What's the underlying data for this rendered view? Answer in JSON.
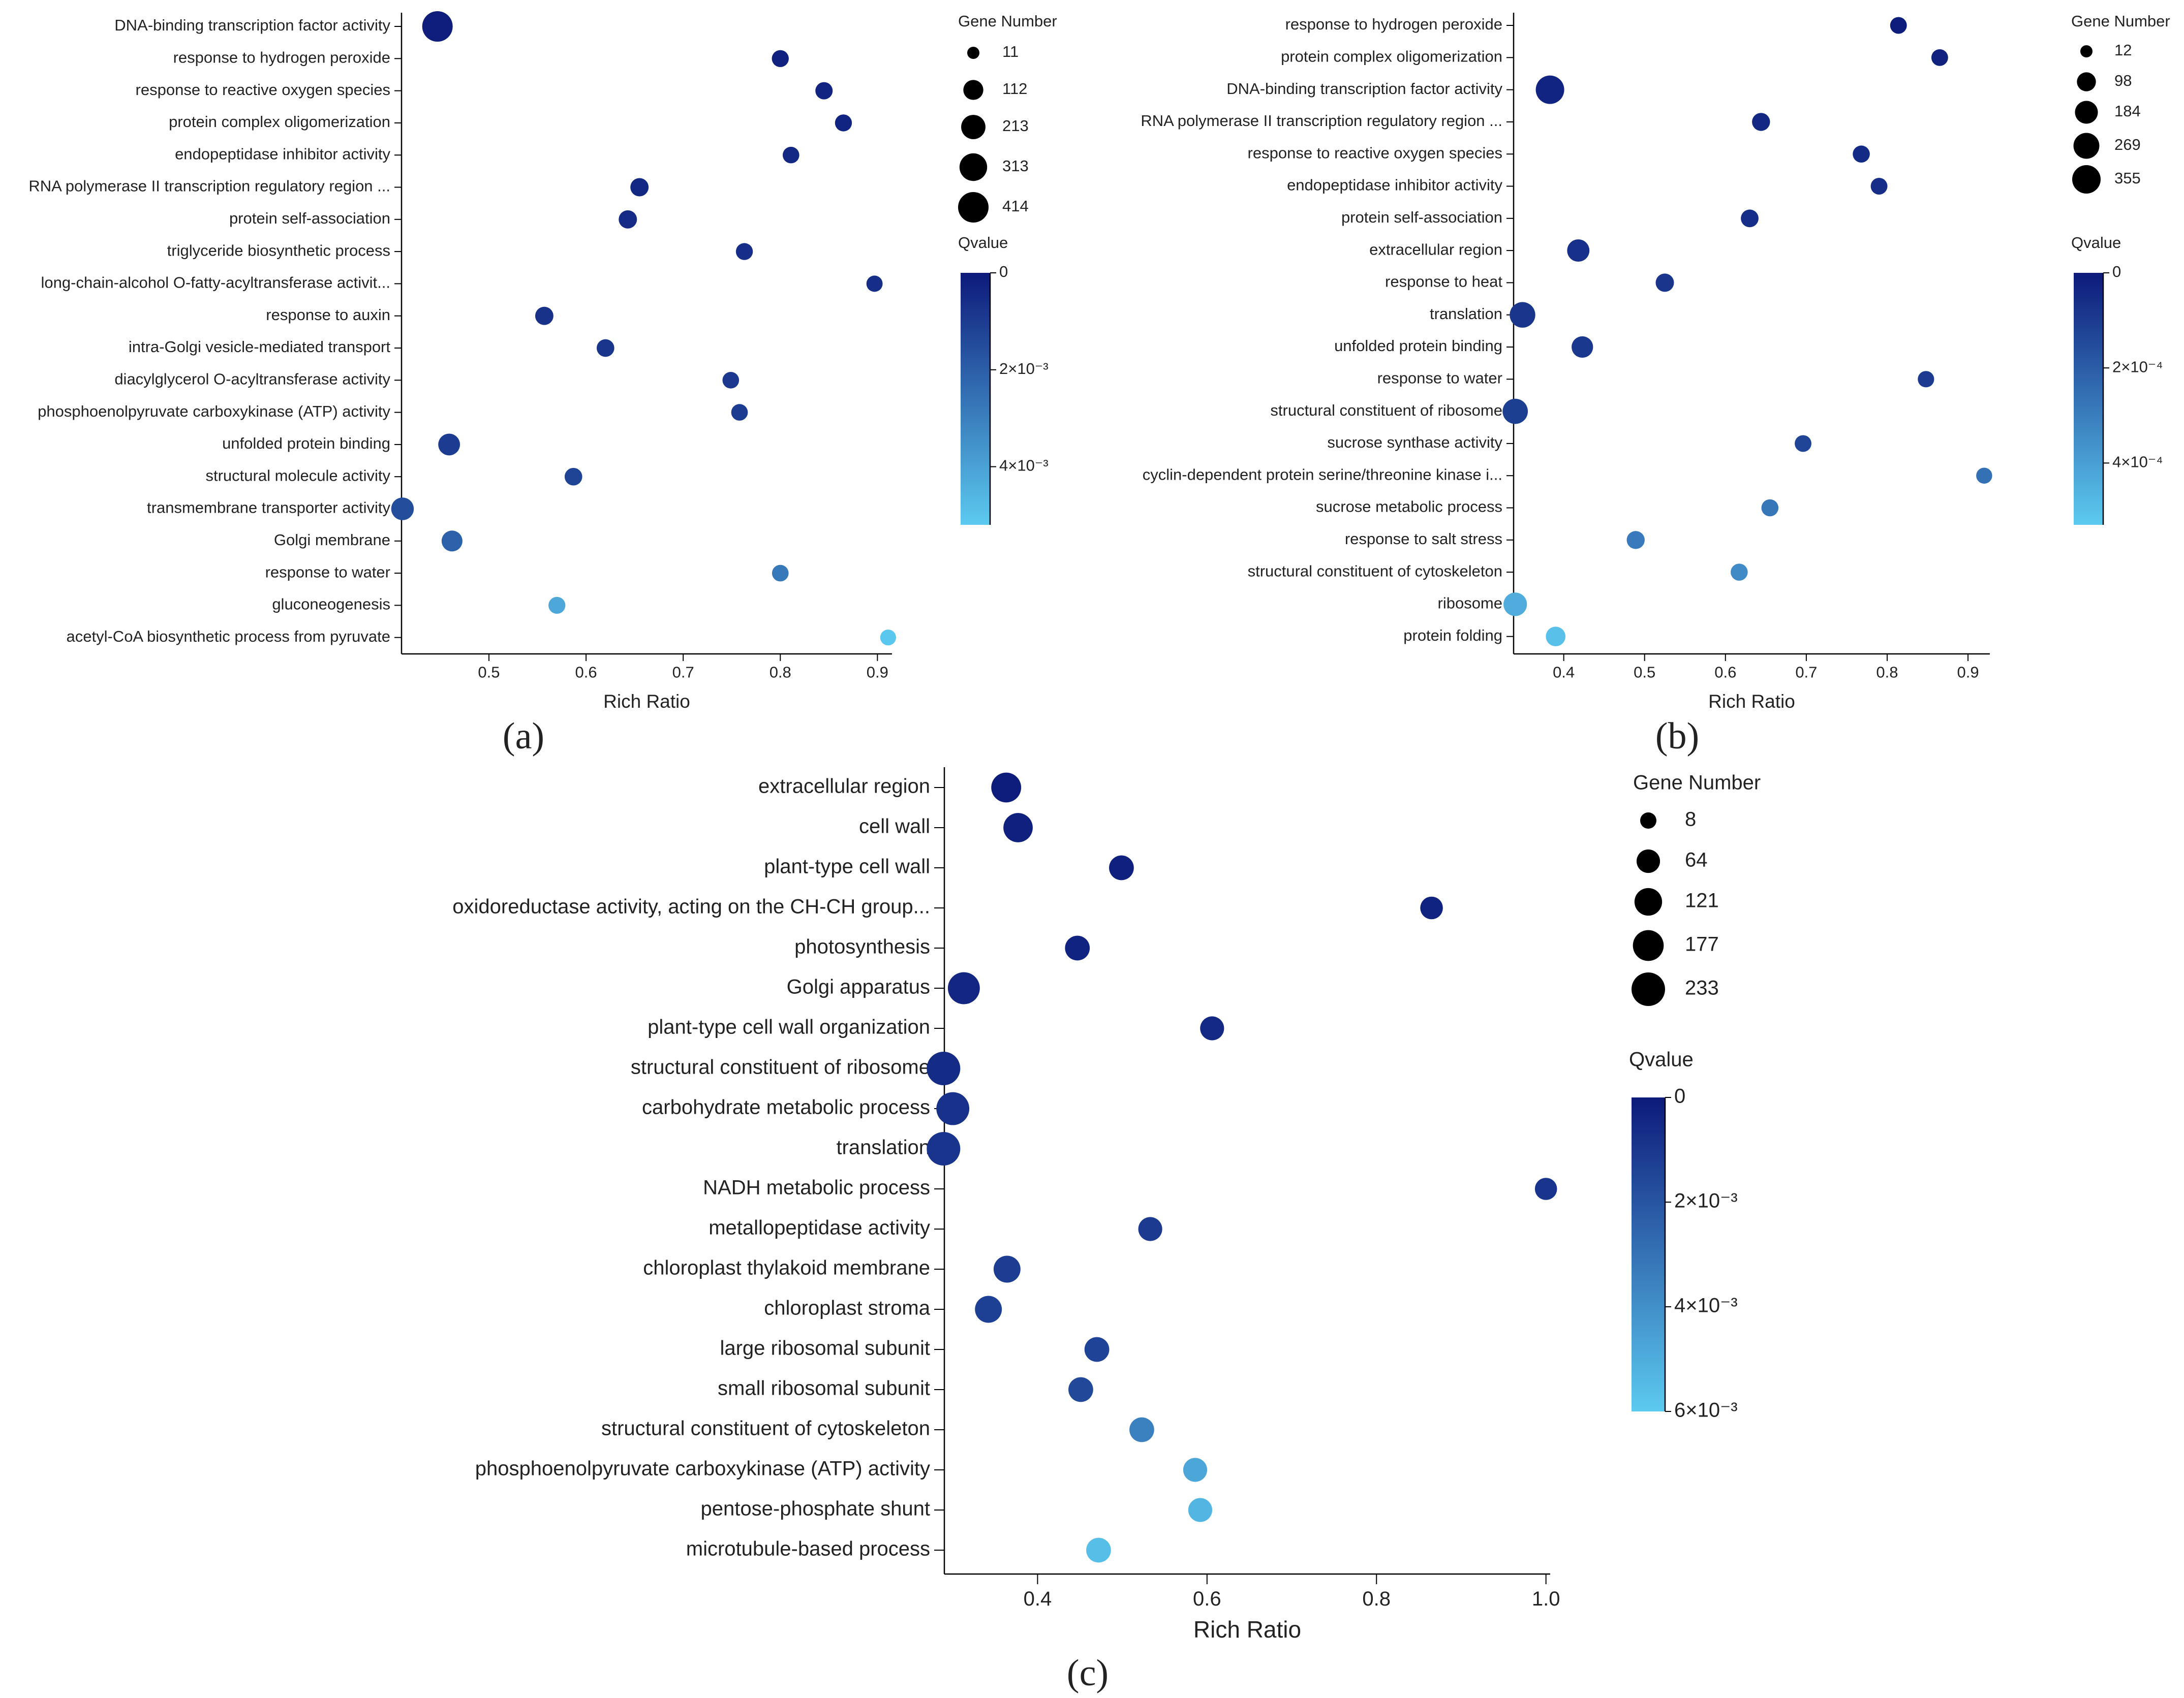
{
  "figure": {
    "panel_labels": [
      "(a)",
      "(b)",
      "(c)"
    ]
  },
  "chart_data": [
    {
      "panel": "(a)",
      "type": "scatter",
      "subtype": "bubble",
      "xlabel": "Rich Ratio",
      "xlim": [
        0.41,
        0.915
      ],
      "xticks": [
        0.5,
        0.6,
        0.7,
        0.8,
        0.9
      ],
      "xtick_labels": [
        "0.5",
        "0.6",
        "0.7",
        "0.8",
        "0.9"
      ],
      "size_legend": {
        "title": "Gene Number",
        "values": [
          11,
          112,
          213,
          313,
          414
        ]
      },
      "color_legend": {
        "title": "Qvalue",
        "min": 0,
        "max": 0.0052,
        "ticks": [
          0,
          0.002,
          0.004
        ],
        "tick_labels": [
          "0",
          "2×10⁻³",
          "4×10⁻³"
        ],
        "low_color": "#0d1a7a",
        "high_color": "#5ccaf0"
      },
      "points": [
        {
          "term": "DNA-binding transcription factor activity",
          "rich_ratio": 0.447,
          "gene_number": 414,
          "qvalue": 0.0001
        },
        {
          "term": "response to hydrogen peroxide",
          "rich_ratio": 0.8,
          "gene_number": 60,
          "qvalue": 0.0002
        },
        {
          "term": "response to reactive oxygen species",
          "rich_ratio": 0.845,
          "gene_number": 65,
          "qvalue": 0.0003
        },
        {
          "term": "protein complex oligomerization",
          "rich_ratio": 0.865,
          "gene_number": 60,
          "qvalue": 0.0003
        },
        {
          "term": "endopeptidase inhibitor activity",
          "rich_ratio": 0.811,
          "gene_number": 55,
          "qvalue": 0.0004
        },
        {
          "term": "RNA polymerase II transcription regulatory region ...",
          "rich_ratio": 0.655,
          "gene_number": 80,
          "qvalue": 0.0004
        },
        {
          "term": "protein self-association",
          "rich_ratio": 0.643,
          "gene_number": 80,
          "qvalue": 0.0005
        },
        {
          "term": "triglyceride biosynthetic process",
          "rich_ratio": 0.763,
          "gene_number": 60,
          "qvalue": 0.0006
        },
        {
          "term": "long-chain-alcohol O-fatty-acyltransferase activit...",
          "rich_ratio": 0.897,
          "gene_number": 50,
          "qvalue": 0.0006
        },
        {
          "term": "response to auxin",
          "rich_ratio": 0.557,
          "gene_number": 80,
          "qvalue": 0.0007
        },
        {
          "term": "intra-Golgi vesicle-mediated transport",
          "rich_ratio": 0.62,
          "gene_number": 70,
          "qvalue": 0.0008
        },
        {
          "term": "diacylglycerol O-acyltransferase activity",
          "rich_ratio": 0.749,
          "gene_number": 55,
          "qvalue": 0.0009
        },
        {
          "term": "phosphoenolpyruvate carboxykinase (ATP) activity",
          "rich_ratio": 0.758,
          "gene_number": 55,
          "qvalue": 0.001
        },
        {
          "term": "unfolded protein binding",
          "rich_ratio": 0.459,
          "gene_number": 150,
          "qvalue": 0.001
        },
        {
          "term": "structural molecule activity",
          "rich_ratio": 0.587,
          "gene_number": 70,
          "qvalue": 0.0012
        },
        {
          "term": "transmembrane transporter activity",
          "rich_ratio": 0.411,
          "gene_number": 170,
          "qvalue": 0.0015
        },
        {
          "term": "Golgi membrane",
          "rich_ratio": 0.462,
          "gene_number": 130,
          "qvalue": 0.0021
        },
        {
          "term": "response to water",
          "rich_ratio": 0.8,
          "gene_number": 55,
          "qvalue": 0.0028
        },
        {
          "term": "gluconeogenesis",
          "rich_ratio": 0.57,
          "gene_number": 60,
          "qvalue": 0.0042
        },
        {
          "term": "acetyl-CoA biosynthetic process from pyruvate",
          "rich_ratio": 0.911,
          "gene_number": 45,
          "qvalue": 0.0051
        }
      ]
    },
    {
      "panel": "(b)",
      "type": "scatter",
      "subtype": "bubble",
      "xlabel": "Rich Ratio",
      "xlim": [
        0.338,
        0.927
      ],
      "xticks": [
        0.4,
        0.5,
        0.6,
        0.7,
        0.8,
        0.9
      ],
      "xtick_labels": [
        "0.4",
        "0.5",
        "0.6",
        "0.7",
        "0.8",
        "0.9"
      ],
      "size_legend": {
        "title": "Gene Number",
        "values": [
          12,
          98,
          184,
          269,
          355
        ]
      },
      "color_legend": {
        "title": "Qvalue",
        "min": 0,
        "max": 0.00053,
        "ticks": [
          0,
          0.0002,
          0.0004
        ],
        "tick_labels": [
          "0",
          "2×10⁻⁴",
          "4×10⁻⁴"
        ],
        "low_color": "#0d1a7a",
        "high_color": "#5ccaf0"
      },
      "points": [
        {
          "term": "response to hydrogen peroxide",
          "rich_ratio": 0.814,
          "gene_number": 60,
          "qvalue": 1e-05
        },
        {
          "term": "protein complex oligomerization",
          "rich_ratio": 0.865,
          "gene_number": 60,
          "qvalue": 2e-05
        },
        {
          "term": "DNA-binding transcription factor activity",
          "rich_ratio": 0.383,
          "gene_number": 355,
          "qvalue": 3e-05
        },
        {
          "term": "RNA polymerase II transcription regulatory region ...",
          "rich_ratio": 0.644,
          "gene_number": 80,
          "qvalue": 4e-05
        },
        {
          "term": "response to reactive oxygen species",
          "rich_ratio": 0.768,
          "gene_number": 65,
          "qvalue": 5e-05
        },
        {
          "term": "endopeptidase inhibitor activity",
          "rich_ratio": 0.79,
          "gene_number": 60,
          "qvalue": 6e-05
        },
        {
          "term": "protein self-association",
          "rich_ratio": 0.63,
          "gene_number": 75,
          "qvalue": 6e-05
        },
        {
          "term": "extracellular region",
          "rich_ratio": 0.418,
          "gene_number": 170,
          "qvalue": 7e-05
        },
        {
          "term": "response to heat",
          "rich_ratio": 0.525,
          "gene_number": 85,
          "qvalue": 8e-05
        },
        {
          "term": "translation",
          "rich_ratio": 0.349,
          "gene_number": 260,
          "qvalue": 8e-05
        },
        {
          "term": "unfolded protein binding",
          "rich_ratio": 0.423,
          "gene_number": 150,
          "qvalue": 9e-05
        },
        {
          "term": "response to water",
          "rich_ratio": 0.848,
          "gene_number": 55,
          "qvalue": 0.0001
        },
        {
          "term": "structural constituent of ribosome",
          "rich_ratio": 0.34,
          "gene_number": 250,
          "qvalue": 0.00011
        },
        {
          "term": "sucrose synthase activity",
          "rich_ratio": 0.696,
          "gene_number": 60,
          "qvalue": 0.00013
        },
        {
          "term": "cyclin-dependent protein serine/threonine kinase i...",
          "rich_ratio": 0.92,
          "gene_number": 50,
          "qvalue": 0.00026
        },
        {
          "term": "sucrose metabolic process",
          "rich_ratio": 0.655,
          "gene_number": 65,
          "qvalue": 0.00028
        },
        {
          "term": "response to salt stress",
          "rich_ratio": 0.489,
          "gene_number": 80,
          "qvalue": 0.00029
        },
        {
          "term": "structural constituent of cytoskeleton",
          "rich_ratio": 0.617,
          "gene_number": 65,
          "qvalue": 0.00034
        },
        {
          "term": "ribosome",
          "rich_ratio": 0.34,
          "gene_number": 200,
          "qvalue": 0.00044
        },
        {
          "term": "protein folding",
          "rich_ratio": 0.39,
          "gene_number": 110,
          "qvalue": 0.0005
        }
      ]
    },
    {
      "panel": "(c)",
      "type": "scatter",
      "subtype": "bubble",
      "xlabel": "Rich Ratio",
      "xlim": [
        0.29,
        1.005
      ],
      "xticks": [
        0.4,
        0.6,
        0.8,
        1.0
      ],
      "xtick_labels": [
        "0.4",
        "0.6",
        "0.8",
        "1.0"
      ],
      "size_legend": {
        "title": "Gene Number",
        "values": [
          8,
          64,
          121,
          177,
          233
        ]
      },
      "color_legend": {
        "title": "Qvalue",
        "min": 0,
        "max": 0.006,
        "ticks": [
          0,
          0.002,
          0.004,
          0.006
        ],
        "tick_labels": [
          "0",
          "2×10⁻³",
          "4×10⁻³",
          "6×10⁻³"
        ],
        "low_color": "#0d1a7a",
        "high_color": "#5ccaf0"
      },
      "points": [
        {
          "term": "extracellular region",
          "rich_ratio": 0.363,
          "gene_number": 160,
          "qvalue": 0.0001
        },
        {
          "term": "cell wall",
          "rich_ratio": 0.377,
          "gene_number": 150,
          "qvalue": 0.0002
        },
        {
          "term": "plant-type cell wall",
          "rich_ratio": 0.499,
          "gene_number": 80,
          "qvalue": 0.0002
        },
        {
          "term": "oxidoreductase activity, acting on the CH-CH group...",
          "rich_ratio": 0.865,
          "gene_number": 55,
          "qvalue": 0.0003
        },
        {
          "term": "photosynthesis",
          "rich_ratio": 0.447,
          "gene_number": 80,
          "qvalue": 0.0003
        },
        {
          "term": "Golgi apparatus",
          "rich_ratio": 0.313,
          "gene_number": 200,
          "qvalue": 0.0004
        },
        {
          "term": "plant-type cell wall organization",
          "rich_ratio": 0.606,
          "gene_number": 70,
          "qvalue": 0.0005
        },
        {
          "term": "structural constituent of ribosome",
          "rich_ratio": 0.289,
          "gene_number": 233,
          "qvalue": 0.0006
        },
        {
          "term": "carbohydrate metabolic process",
          "rich_ratio": 0.3,
          "gene_number": 220,
          "qvalue": 0.0008
        },
        {
          "term": "translation",
          "rich_ratio": 0.289,
          "gene_number": 233,
          "qvalue": 0.0009
        },
        {
          "term": "NADH metabolic process",
          "rich_ratio": 1.0,
          "gene_number": 50,
          "qvalue": 0.0009
        },
        {
          "term": "metallopeptidase activity",
          "rich_ratio": 0.533,
          "gene_number": 70,
          "qvalue": 0.0011
        },
        {
          "term": "chloroplast thylakoid membrane",
          "rich_ratio": 0.364,
          "gene_number": 110,
          "qvalue": 0.0012
        },
        {
          "term": "chloroplast stroma",
          "rich_ratio": 0.342,
          "gene_number": 110,
          "qvalue": 0.0013
        },
        {
          "term": "large ribosomal subunit",
          "rich_ratio": 0.47,
          "gene_number": 80,
          "qvalue": 0.0014
        },
        {
          "term": "small ribosomal subunit",
          "rich_ratio": 0.451,
          "gene_number": 80,
          "qvalue": 0.0016
        },
        {
          "term": "structural constituent of cytoskeleton",
          "rich_ratio": 0.523,
          "gene_number": 80,
          "qvalue": 0.0035
        },
        {
          "term": "phosphoenolpyruvate carboxykinase (ATP) activity",
          "rich_ratio": 0.586,
          "gene_number": 70,
          "qvalue": 0.0048
        },
        {
          "term": "pentose-phosphate shunt",
          "rich_ratio": 0.592,
          "gene_number": 70,
          "qvalue": 0.0053
        },
        {
          "term": "microtubule-based process",
          "rich_ratio": 0.472,
          "gene_number": 80,
          "qvalue": 0.0056
        }
      ]
    }
  ]
}
